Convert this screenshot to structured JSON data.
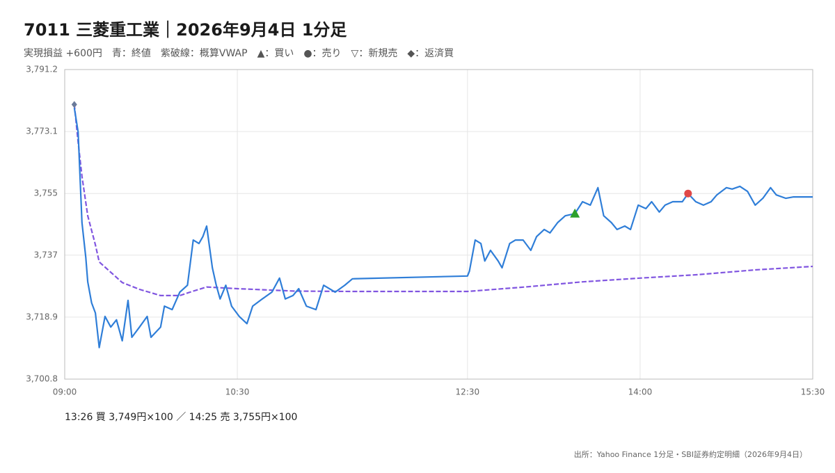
{
  "chart_data": {
    "type": "line",
    "title": "7011 三菱重工業｜2026年9月4日 1分足",
    "subtitle": "実現損益 +600円　青：終値　紫破線：概算VWAP　▲：買い　●：売り　▽：新規売　◆：返済買",
    "note": "13:26 買 3,749円×100 ／ 14:25 売 3,755円×100",
    "source": "出所：Yahoo Finance 1分足・SBI証券約定明細（2026年9月4日）",
    "xlim": [
      "09:00",
      "15:30"
    ],
    "xticks": [
      "09:00",
      "10:30",
      "12:30",
      "14:00",
      "15:30"
    ],
    "ylim": [
      3700.8,
      3791.2
    ],
    "yticks": [
      {
        "value": 3700.8,
        "label": "3,700.8"
      },
      {
        "value": 3718.9,
        "label": "3,718.9"
      },
      {
        "value": 3737,
        "label": "3,737"
      },
      {
        "value": 3755,
        "label": "3,755"
      },
      {
        "value": 3773.1,
        "label": "3,773.1"
      },
      {
        "value": 3791.2,
        "label": "3,791.2"
      }
    ],
    "grid": true,
    "series": [
      {
        "color": "#2f7ed8",
        "dashed": false,
        "x": [
          "09:05",
          "09:07",
          "09:09",
          "09:11",
          "09:12",
          "09:14",
          "09:16",
          "09:18",
          "09:21",
          "09:24",
          "09:27",
          "09:30",
          "09:33",
          "09:35",
          "09:39",
          "09:43",
          "09:45",
          "09:50",
          "09:52",
          "09:56",
          "10:00",
          "10:04",
          "10:07",
          "10:10",
          "10:12",
          "10:14",
          "10:17",
          "10:19",
          "10:21",
          "10:24",
          "10:27",
          "10:31",
          "10:35",
          "10:38",
          "10:43",
          "10:48",
          "10:52",
          "10:55",
          "10:59",
          "11:02",
          "11:06",
          "11:11",
          "11:15",
          "11:21",
          "11:26",
          "11:30",
          "12:30",
          "12:31",
          "12:34",
          "12:37",
          "12:39",
          "12:42",
          "12:46",
          "12:48",
          "12:52",
          "12:55",
          "12:59",
          "13:03",
          "13:06",
          "13:10",
          "13:13",
          "13:17",
          "13:21",
          "13:26",
          "13:30",
          "13:34",
          "13:38",
          "13:41",
          "13:45",
          "13:48",
          "13:52",
          "13:55",
          "13:59",
          "14:03",
          "14:06",
          "14:10",
          "14:13",
          "14:17",
          "14:22",
          "14:25",
          "14:29",
          "14:33",
          "14:37",
          "14:40",
          "14:45",
          "14:48",
          "14:52",
          "14:56",
          "15:00",
          "15:04",
          "15:08",
          "15:11",
          "15:16",
          "15:20",
          "15:30"
        ],
        "values": [
          3780.0,
          3772.9,
          3746.5,
          3736.3,
          3729.2,
          3723.1,
          3720.1,
          3710.0,
          3719.1,
          3716.0,
          3718.1,
          3712.0,
          3723.8,
          3713.0,
          3716.0,
          3719.1,
          3713.0,
          3716.0,
          3722.1,
          3721.1,
          3726.2,
          3728.2,
          3741.4,
          3740.4,
          3742.4,
          3745.5,
          3733.3,
          3728.2,
          3724.2,
          3728.2,
          3722.1,
          3719.1,
          3717.0,
          3722.1,
          3724.2,
          3726.2,
          3730.3,
          3724.2,
          3725.2,
          3727.2,
          3722.1,
          3721.1,
          3728.2,
          3726.2,
          3728.2,
          3730.1,
          3730.9,
          3732.3,
          3741.4,
          3740.4,
          3735.3,
          3738.4,
          3735.3,
          3733.3,
          3740.4,
          3741.4,
          3741.4,
          3738.4,
          3742.4,
          3744.5,
          3743.5,
          3746.5,
          3748.5,
          3749.1,
          3752.6,
          3751.6,
          3756.7,
          3748.5,
          3746.5,
          3744.5,
          3745.5,
          3744.5,
          3751.6,
          3750.6,
          3752.6,
          3749.6,
          3751.6,
          3752.6,
          3752.6,
          3755.0,
          3752.6,
          3751.6,
          3752.6,
          3754.6,
          3756.7,
          3756.3,
          3757.1,
          3755.6,
          3751.6,
          3753.6,
          3756.7,
          3754.6,
          3753.6,
          3754.0,
          3754.0
        ]
      },
      {
        "color": "#8055e0",
        "dashed": true,
        "x": [
          "09:05",
          "09:07",
          "09:09",
          "09:12",
          "09:16",
          "09:18",
          "09:24",
          "09:30",
          "09:39",
          "09:50",
          "10:00",
          "10:07",
          "10:14",
          "10:30",
          "11:00",
          "11:30",
          "12:30",
          "13:00",
          "13:30",
          "14:00",
          "14:30",
          "15:00",
          "15:30"
        ],
        "values": [
          3781.0,
          3770.0,
          3760.0,
          3748.5,
          3740.0,
          3735.0,
          3732.0,
          3729.0,
          3727.0,
          3725.2,
          3725.2,
          3726.5,
          3727.7,
          3727.2,
          3726.5,
          3726.4,
          3726.4,
          3727.7,
          3729.2,
          3730.3,
          3731.3,
          3732.7,
          3733.7
        ]
      }
    ],
    "markers": [
      {
        "x": "13:26",
        "y": 3749,
        "symbol": "triangle",
        "color": "#2ca02c"
      },
      {
        "x": "14:25",
        "y": 3755,
        "symbol": "circle",
        "color": "#e04848"
      },
      {
        "x": "09:05",
        "y": 3781,
        "symbol": "diamond",
        "color": "#6a7a9a"
      }
    ]
  }
}
